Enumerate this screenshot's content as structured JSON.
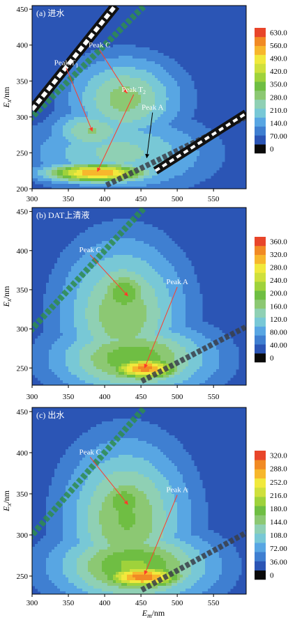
{
  "figure": {
    "xlabel_main": "E",
    "xlabel_sub": "m",
    "xlabel_unit": "/nm",
    "ylabel_main": "E",
    "ylabel_sub": "x",
    "ylabel_unit": "/nm"
  },
  "colors": {
    "background": "#2b55b5",
    "annotation_arrow": "#ff3b2b",
    "scale": [
      "#0a0a0a",
      "#2b55b5",
      "#3f7fd1",
      "#58a6e3",
      "#78c8d6",
      "#8fd0b4",
      "#8cc873",
      "#6fbe43",
      "#9fd23b",
      "#cfe03c",
      "#f1e93c",
      "#f7b72c",
      "#f18a24",
      "#e8452a"
    ]
  },
  "chart_data": [
    {
      "type": "heatmap",
      "panel_label": "(a) 进水",
      "x_range": [
        300,
        595
      ],
      "y_range": [
        200,
        455
      ],
      "xticks": [
        300,
        350,
        400,
        450,
        500,
        550
      ],
      "yticks": [
        200,
        250,
        300,
        350,
        400,
        450
      ],
      "colorbar_ticks": [
        "630.0",
        "560.0",
        "490.0",
        "420.0",
        "350.0",
        "280.0",
        "210.0",
        "140.0",
        "70.00",
        "0"
      ],
      "colorbar_max": 630,
      "blobs": [
        {
          "x": 390,
          "y": 222,
          "sx": 48,
          "sy": 9,
          "value": 560
        },
        {
          "x": 383,
          "y": 280,
          "sx": 38,
          "sy": 20,
          "value": 240
        },
        {
          "x": 428,
          "y": 325,
          "sx": 50,
          "sy": 38,
          "value": 260
        },
        {
          "x": 420,
          "y": 250,
          "sx": 80,
          "sy": 35,
          "value": 200
        },
        {
          "x": 470,
          "y": 240,
          "sx": 60,
          "sy": 18,
          "value": 120
        }
      ],
      "scatter_band": {
        "ex_start": 200,
        "slope": 0.5,
        "offset": 15,
        "intensity": 200
      },
      "peaks": [
        {
          "label": "Peak C",
          "label_pos": [
            393,
            397
          ],
          "to": [
            431,
            333
          ]
        },
        {
          "label": "Peak T",
          "sub": "1",
          "label_pos": [
            347,
            372
          ],
          "to": [
            383,
            280
          ]
        },
        {
          "label": "Peak T",
          "sub": "2",
          "label_pos": [
            440,
            335
          ],
          "to": [
            390,
            224
          ]
        },
        {
          "label": "Peak A",
          "label_pos": [
            466,
            310
          ],
          "to": [
            458,
            243
          ],
          "arrow_color": "#000000"
        }
      ]
    },
    {
      "type": "heatmap",
      "panel_label": "(b) DAT上清液",
      "x_range": [
        300,
        595
      ],
      "y_range": [
        228,
        455
      ],
      "xticks": [
        300,
        350,
        400,
        450,
        500,
        550
      ],
      "yticks": [
        250,
        300,
        350,
        400,
        450
      ],
      "colorbar_ticks": [
        "360.0",
        "320.0",
        "280.0",
        "240.0",
        "200.0",
        "160.0",
        "120.0",
        "80.00",
        "40.00",
        "0"
      ],
      "colorbar_max": 360,
      "blobs": [
        {
          "x": 427,
          "y": 345,
          "sx": 30,
          "sy": 25,
          "value": 190
        },
        {
          "x": 425,
          "y": 320,
          "sx": 55,
          "sy": 60,
          "value": 160
        },
        {
          "x": 455,
          "y": 249,
          "sx": 35,
          "sy": 10,
          "value": 330
        },
        {
          "x": 440,
          "y": 262,
          "sx": 70,
          "sy": 30,
          "value": 190
        }
      ],
      "scatter_band": {
        "ex_start": 228,
        "slope": 1.0,
        "offset": 0,
        "intensity": 100
      },
      "peaks": [
        {
          "label": "Peak C",
          "label_pos": [
            380,
            398
          ],
          "to": [
            432,
            342
          ]
        },
        {
          "label": "Peak A",
          "label_pos": [
            500,
            357
          ],
          "to": [
            455,
            250
          ]
        }
      ]
    },
    {
      "type": "heatmap",
      "panel_label": "(c) 出水",
      "x_range": [
        300,
        595
      ],
      "y_range": [
        228,
        455
      ],
      "xticks": [
        300,
        350,
        400,
        450,
        500,
        550
      ],
      "yticks": [
        250,
        300,
        350,
        400,
        450
      ],
      "colorbar_ticks": [
        "320.0",
        "288.0",
        "252.0",
        "216.0",
        "180.0",
        "144.0",
        "108.0",
        "72.00",
        "36.00",
        "0"
      ],
      "colorbar_max": 320,
      "blobs": [
        {
          "x": 427,
          "y": 340,
          "sx": 28,
          "sy": 22,
          "value": 170
        },
        {
          "x": 430,
          "y": 320,
          "sx": 55,
          "sy": 60,
          "value": 150
        },
        {
          "x": 452,
          "y": 249,
          "sx": 40,
          "sy": 10,
          "value": 300
        },
        {
          "x": 440,
          "y": 262,
          "sx": 70,
          "sy": 30,
          "value": 180
        }
      ],
      "scatter_band": {
        "ex_start": 228,
        "slope": 1.0,
        "offset": 0,
        "intensity": 90
      },
      "peaks": [
        {
          "label": "Peak C",
          "label_pos": [
            380,
            398
          ],
          "to": [
            432,
            337
          ]
        },
        {
          "label": "Peak A",
          "label_pos": [
            500,
            352
          ],
          "to": [
            455,
            252
          ]
        }
      ]
    }
  ]
}
